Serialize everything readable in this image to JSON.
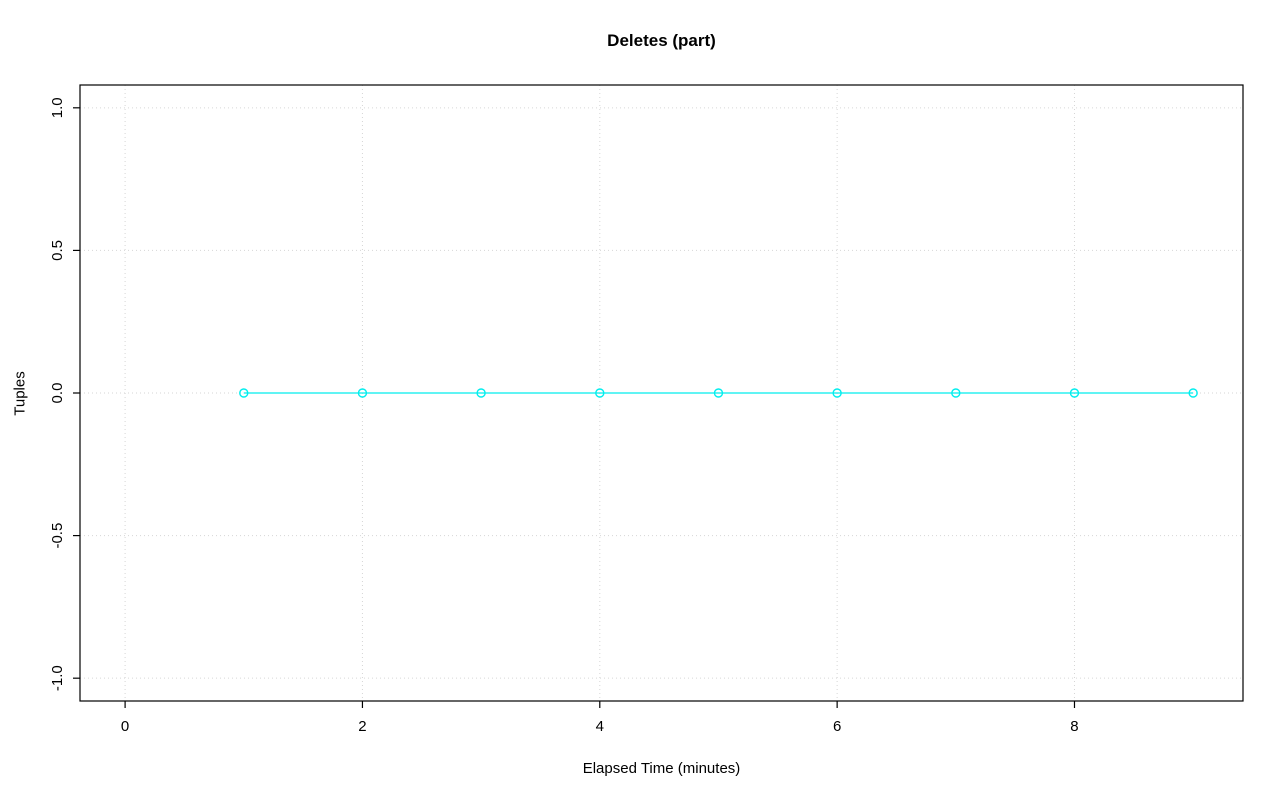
{
  "title": "Deletes (part)",
  "chart_data": {
    "type": "line",
    "title": "Deletes (part)",
    "xlabel": "Elapsed Time (minutes)",
    "ylabel": "Tuples",
    "x": [
      1,
      2,
      3,
      4,
      5,
      6,
      7,
      8,
      9
    ],
    "y": [
      0,
      0,
      0,
      0,
      0,
      0,
      0,
      0,
      0
    ],
    "xlim": [
      -0.38,
      9.42
    ],
    "ylim": [
      -1.08,
      1.08
    ],
    "xticks": [
      0,
      2,
      4,
      6,
      8
    ],
    "xtick_labels": [
      "0",
      "2",
      "4",
      "6",
      "8"
    ],
    "yticks": [
      -1.0,
      -0.5,
      0.0,
      0.5,
      1.0
    ],
    "ytick_labels": [
      "-1.0",
      "-0.5",
      "0.0",
      "0.5",
      "1.0"
    ],
    "grid": true,
    "legend": "none",
    "marker": "open-circle",
    "colors": {
      "series": "#00EEEE",
      "grid": "#D6D6D6",
      "axis": "#000000",
      "background": "#FFFFFF"
    }
  }
}
